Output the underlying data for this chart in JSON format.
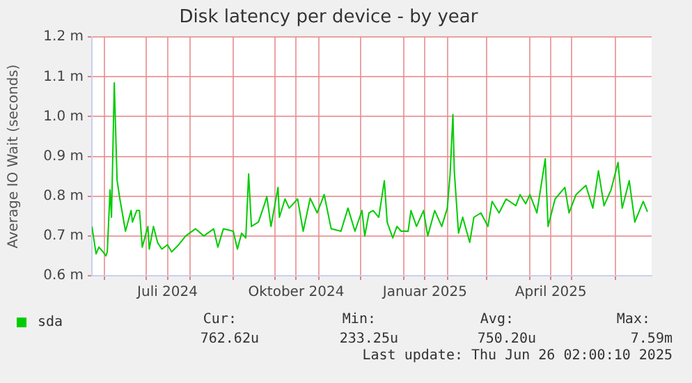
{
  "chart_data": {
    "type": "line",
    "title": "Disk latency per device - by year",
    "ylabel": "Average IO Wait (seconds)",
    "x": [
      "2024-05-23",
      "2024-05-26",
      "2024-05-28",
      "2024-05-31",
      "2024-06-02",
      "2024-06-03",
      "2024-06-05",
      "2024-06-06",
      "2024-06-08",
      "2024-06-10",
      "2024-06-12",
      "2024-06-16",
      "2024-06-20",
      "2024-06-21",
      "2024-06-24",
      "2024-06-26",
      "2024-06-28",
      "2024-07-02",
      "2024-07-03",
      "2024-07-06",
      "2024-07-09",
      "2024-07-12",
      "2024-07-16",
      "2024-07-19",
      "2024-07-24",
      "2024-07-29",
      "2024-08-05",
      "2024-08-11",
      "2024-08-18",
      "2024-08-21",
      "2024-08-25",
      "2024-09-01",
      "2024-09-04",
      "2024-09-07",
      "2024-09-10",
      "2024-09-12",
      "2024-09-14",
      "2024-09-19",
      "2024-09-23",
      "2024-09-25",
      "2024-09-28",
      "2024-10-03",
      "2024-10-04",
      "2024-10-08",
      "2024-10-11",
      "2024-10-17",
      "2024-10-21",
      "2024-10-26",
      "2024-10-31",
      "2024-11-05",
      "2024-11-10",
      "2024-11-17",
      "2024-11-22",
      "2024-11-27",
      "2024-12-02",
      "2024-12-04",
      "2024-12-07",
      "2024-12-10",
      "2024-12-14",
      "2024-12-18",
      "2024-12-20",
      "2024-12-24",
      "2024-12-27",
      "2024-12-30",
      "2025-01-04",
      "2025-01-06",
      "2025-01-10",
      "2025-01-15",
      "2025-01-18",
      "2025-01-23",
      "2025-01-28",
      "2025-02-01",
      "2025-02-03",
      "2025-02-05",
      "2025-02-06",
      "2025-02-09",
      "2025-02-12",
      "2025-02-17",
      "2025-02-20",
      "2025-02-25",
      "2025-03-02",
      "2025-03-05",
      "2025-03-10",
      "2025-03-15",
      "2025-03-22",
      "2025-03-25",
      "2025-03-29",
      "2025-04-01",
      "2025-04-06",
      "2025-04-12",
      "2025-04-14",
      "2025-04-19",
      "2025-04-26",
      "2025-04-29",
      "2025-05-04",
      "2025-05-11",
      "2025-05-16",
      "2025-05-20",
      "2025-05-24",
      "2025-05-29",
      "2025-06-03",
      "2025-06-06",
      "2025-06-11",
      "2025-06-15",
      "2025-06-21",
      "2025-06-24"
    ],
    "series": [
      {
        "name": "sda",
        "color": "#00cc00",
        "values": [
          0.724,
          0.655,
          0.672,
          0.66,
          0.65,
          0.66,
          0.816,
          0.747,
          1.085,
          0.84,
          0.793,
          0.712,
          0.764,
          0.735,
          0.764,
          0.764,
          0.672,
          0.724,
          0.667,
          0.724,
          0.683,
          0.667,
          0.678,
          0.66,
          0.678,
          0.7,
          0.718,
          0.7,
          0.718,
          0.672,
          0.718,
          0.712,
          0.667,
          0.707,
          0.695,
          0.856,
          0.724,
          0.735,
          0.776,
          0.799,
          0.724,
          0.822,
          0.747,
          0.793,
          0.77,
          0.793,
          0.712,
          0.795,
          0.758,
          0.804,
          0.718,
          0.712,
          0.77,
          0.712,
          0.764,
          0.7,
          0.758,
          0.764,
          0.747,
          0.839,
          0.735,
          0.695,
          0.724,
          0.712,
          0.712,
          0.764,
          0.724,
          0.764,
          0.7,
          0.764,
          0.724,
          0.77,
          0.856,
          1.005,
          0.862,
          0.707,
          0.747,
          0.684,
          0.747,
          0.758,
          0.724,
          0.787,
          0.758,
          0.793,
          0.776,
          0.804,
          0.781,
          0.804,
          0.758,
          0.894,
          0.724,
          0.793,
          0.822,
          0.758,
          0.804,
          0.827,
          0.77,
          0.864,
          0.776,
          0.816,
          0.885,
          0.77,
          0.839,
          0.735,
          0.787,
          0.761
        ]
      }
    ],
    "xlim": [
      "2024-05-23",
      "2025-06-27"
    ],
    "xticks": [
      {
        "value": "2024-06-01",
        "label": null
      },
      {
        "value": "2024-07-01",
        "label": null
      },
      {
        "value": "2024-07-16",
        "label": "Juli 2024"
      },
      {
        "value": "2024-08-01",
        "label": null
      },
      {
        "value": "2024-09-01",
        "label": null
      },
      {
        "value": "2024-10-01",
        "label": null
      },
      {
        "value": "2024-10-16",
        "label": "Oktober 2024"
      },
      {
        "value": "2024-11-01",
        "label": null
      },
      {
        "value": "2024-12-01",
        "label": null
      },
      {
        "value": "2025-01-01",
        "label": null
      },
      {
        "value": "2025-01-16",
        "label": "Januar 2025"
      },
      {
        "value": "2025-02-01",
        "label": null
      },
      {
        "value": "2025-03-01",
        "label": null
      },
      {
        "value": "2025-04-01",
        "label": null
      },
      {
        "value": "2025-04-16",
        "label": "April 2025"
      },
      {
        "value": "2025-05-01",
        "label": null
      },
      {
        "value": "2025-06-01",
        "label": null
      }
    ],
    "ylim": [
      0.6,
      1.2
    ],
    "yticks": [
      {
        "value": 0.6,
        "label": "0.6 m"
      },
      {
        "value": 0.7,
        "label": "0.7 m"
      },
      {
        "value": 0.8,
        "label": "0.8 m"
      },
      {
        "value": 0.9,
        "label": "0.9 m"
      },
      {
        "value": 1.0,
        "label": "1.0 m"
      },
      {
        "value": 1.1,
        "label": "1.1 m"
      },
      {
        "value": 1.2,
        "label": "1.2 m"
      }
    ],
    "grid": true,
    "legend": "bottom left",
    "marker": "none",
    "line_style": "solid",
    "annotations": [
      "Cur:",
      "Min:",
      "Avg:",
      "Max:",
      "762.62u",
      "233.25u",
      "750.20u",
      "7.59m",
      "Last update: Thu Jun 26 02:00:10 2025"
    ]
  }
}
